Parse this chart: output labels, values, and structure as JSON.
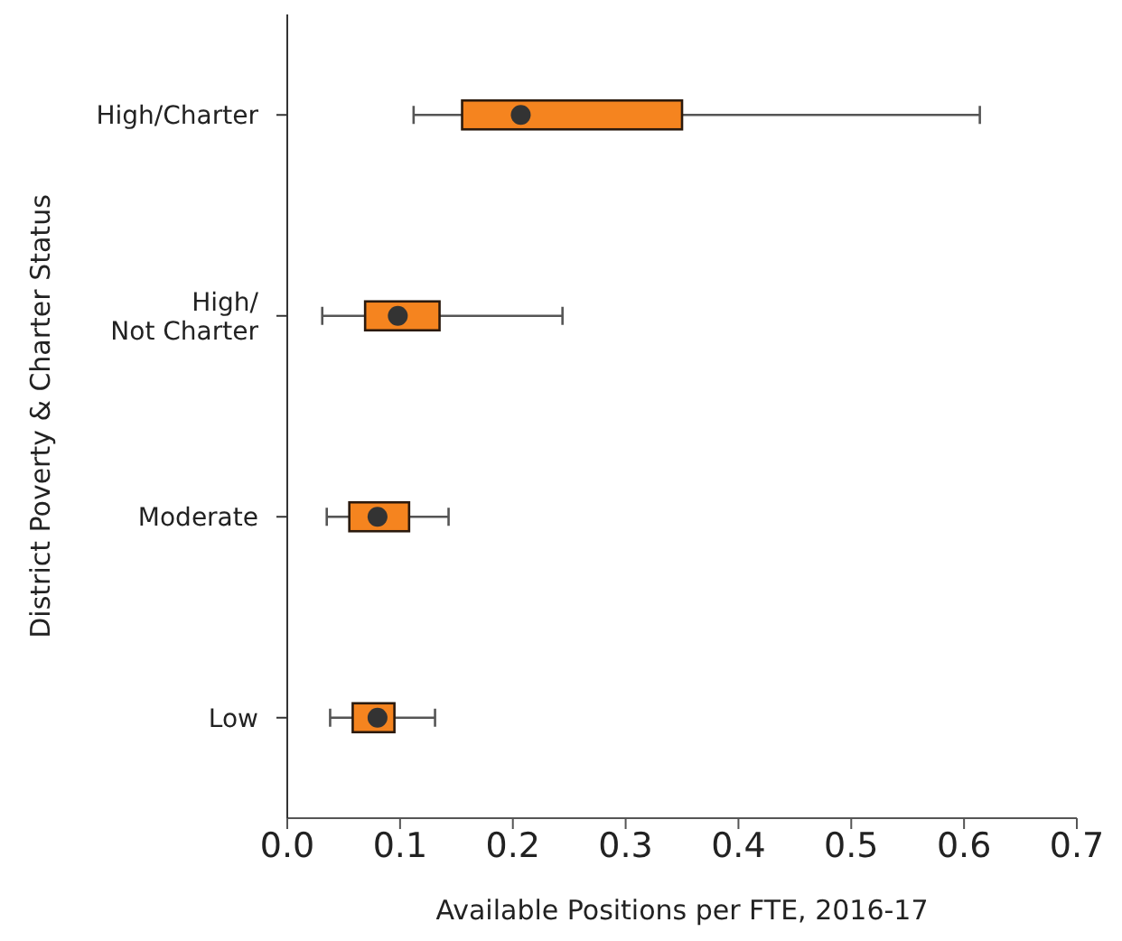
{
  "chart_data": {
    "type": "box",
    "orientation": "horizontal",
    "color": "#f5841f",
    "categories": [
      "High/Charter",
      "High/\nNot Charter",
      "Moderate",
      "Low"
    ],
    "boxes": [
      {
        "low": 0.112,
        "q1": 0.155,
        "median": 0.207,
        "q3": 0.35,
        "high": 0.614
      },
      {
        "low": 0.031,
        "q1": 0.069,
        "median": 0.098,
        "q3": 0.135,
        "high": 0.244
      },
      {
        "low": 0.035,
        "q1": 0.055,
        "median": 0.08,
        "q3": 0.108,
        "high": 0.143
      },
      {
        "low": 0.038,
        "q1": 0.058,
        "median": 0.08,
        "q3": 0.095,
        "high": 0.131
      }
    ],
    "xlim": [
      0,
      0.7
    ],
    "xticks": [
      {
        "value": 0,
        "label": "0.0"
      },
      0.1,
      0.2,
      0.3,
      0.4,
      0.5,
      0.6,
      0.7
    ],
    "xlabel": "Available Positions per FTE, 2016-17",
    "ylabel": "District Poverty & Charter Status"
  }
}
